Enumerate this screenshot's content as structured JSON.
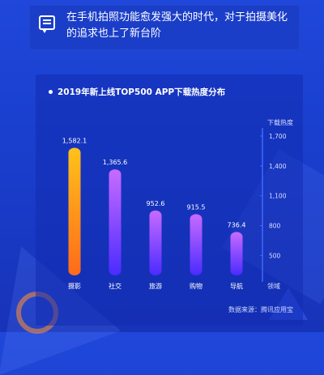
{
  "banner": {
    "icon": "chat-bubble-icon",
    "text": "在手机拍照功能愈发强大的时代，对于拍摄美化的追求也上了新台阶"
  },
  "chart_data": {
    "type": "bar",
    "title": "2019年新上线TOP500 APP下载热度分布",
    "categories": [
      "摄影",
      "社交",
      "旅游",
      "购物",
      "导航"
    ],
    "values": [
      1582.1,
      1365.6,
      952.6,
      915.5,
      736.4
    ],
    "value_labels": [
      "1,582.1",
      "1,365.6",
      "952.6",
      "915.5",
      "736.4"
    ],
    "ylabel": "下载热度",
    "xlabel": "领域",
    "ylim": [
      300,
      1700
    ],
    "y_ticks": [
      500,
      800,
      1100,
      1400,
      1700
    ],
    "y_tick_labels": [
      "500",
      "800",
      "1,100",
      "1,400",
      "1,700"
    ],
    "y_axis_position": "right",
    "colors": {
      "first_bar_top": "#ffc21a",
      "first_bar_bottom": "#ff6a1a",
      "bar_top": "#c86bff",
      "bar_bottom": "#4a2bff",
      "axis": "#3f68ff"
    }
  },
  "source": "数据来源：腾讯应用宝"
}
